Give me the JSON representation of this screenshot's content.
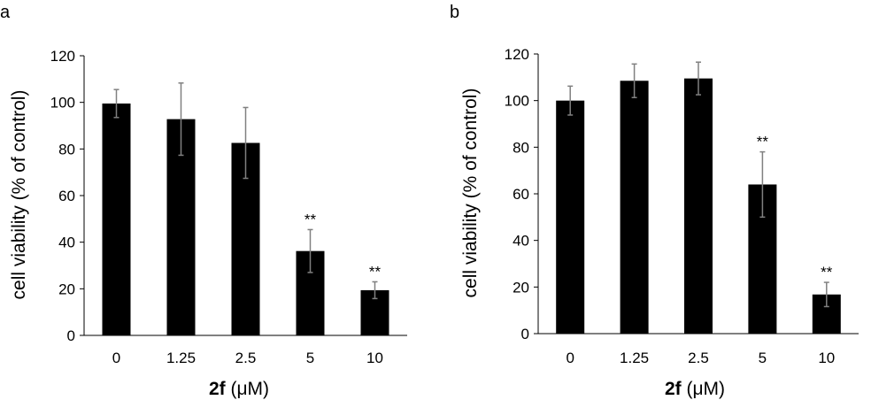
{
  "chart_data": [
    {
      "type": "bar",
      "panel_label": "a",
      "categories": [
        "0",
        "1.25",
        "2.5",
        "5",
        "10"
      ],
      "values": [
        99.5,
        92.8,
        82.6,
        36.2,
        19.4
      ],
      "errors": [
        6.0,
        15.5,
        15.2,
        9.2,
        3.6
      ],
      "annotations": [
        "",
        "",
        "",
        "**",
        "**"
      ],
      "ylabel": "cell viability (% of control)",
      "xlabel_bold": "2f",
      "xlabel_rest": " (μM)",
      "ylim": [
        0,
        120
      ],
      "yticks": [
        "0",
        "20",
        "40",
        "60",
        "80",
        "100",
        "120"
      ],
      "bar_color": "#000000",
      "error_color": "#808080"
    },
    {
      "type": "bar",
      "panel_label": "b",
      "categories": [
        "0",
        "1.25",
        "2.5",
        "5",
        "10"
      ],
      "values": [
        100.0,
        108.5,
        109.5,
        64.0,
        16.8
      ],
      "errors": [
        6.2,
        7.2,
        7.0,
        14.0,
        5.2
      ],
      "annotations": [
        "",
        "",
        "",
        "**",
        "**"
      ],
      "ylabel": "cell viability (% of control)",
      "xlabel_bold": "2f",
      "xlabel_rest": " (μM)",
      "ylim": [
        0,
        120
      ],
      "yticks": [
        "0",
        "20",
        "40",
        "60",
        "80",
        "100",
        "120"
      ],
      "bar_color": "#000000",
      "error_color": "#808080"
    }
  ]
}
